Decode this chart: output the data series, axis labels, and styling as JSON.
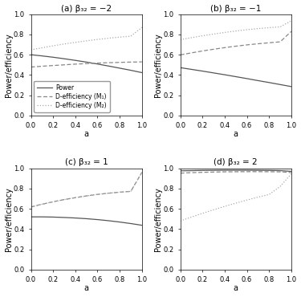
{
  "panels": [
    {
      "title": "(a) β₃₂ = −2",
      "power": [
        0.6,
        0.588,
        0.575,
        0.56,
        0.544,
        0.527,
        0.508,
        0.488,
        0.467,
        0.446,
        0.423
      ],
      "d_eff_M1": [
        0.478,
        0.486,
        0.493,
        0.5,
        0.507,
        0.512,
        0.517,
        0.521,
        0.524,
        0.527,
        0.529
      ],
      "d_eff_M2": [
        0.648,
        0.668,
        0.688,
        0.706,
        0.722,
        0.737,
        0.751,
        0.763,
        0.774,
        0.783,
        0.87
      ],
      "legend": true
    },
    {
      "title": "(b) β₃₂ = −1",
      "power": [
        0.472,
        0.455,
        0.438,
        0.42,
        0.402,
        0.383,
        0.364,
        0.344,
        0.325,
        0.305,
        0.285
      ],
      "d_eff_M1": [
        0.598,
        0.618,
        0.637,
        0.654,
        0.67,
        0.684,
        0.697,
        0.708,
        0.718,
        0.727,
        0.83
      ],
      "d_eff_M2": [
        0.748,
        0.768,
        0.787,
        0.804,
        0.82,
        0.834,
        0.847,
        0.858,
        0.867,
        0.875,
        0.935
      ],
      "legend": false
    },
    {
      "title": "(c) β₃₂ = 1",
      "power": [
        0.52,
        0.52,
        0.518,
        0.514,
        0.509,
        0.502,
        0.493,
        0.482,
        0.469,
        0.454,
        0.437
      ],
      "d_eff_M1": [
        0.618,
        0.645,
        0.669,
        0.691,
        0.71,
        0.727,
        0.742,
        0.754,
        0.764,
        0.772,
        0.96
      ],
      "d_eff_M2": [
        0.618,
        0.645,
        0.669,
        0.691,
        0.71,
        0.727,
        0.742,
        0.754,
        0.764,
        0.772,
        0.96
      ],
      "legend": false
    },
    {
      "title": "(d) β₃₂ = 2",
      "power": [
        0.975,
        0.977,
        0.979,
        0.98,
        0.981,
        0.981,
        0.981,
        0.98,
        0.979,
        0.977,
        0.97
      ],
      "d_eff_M1": [
        0.952,
        0.957,
        0.96,
        0.963,
        0.965,
        0.966,
        0.967,
        0.967,
        0.966,
        0.965,
        0.958
      ],
      "d_eff_M2": [
        0.48,
        0.518,
        0.555,
        0.59,
        0.624,
        0.656,
        0.686,
        0.715,
        0.741,
        0.82,
        0.945
      ],
      "legend": false
    }
  ],
  "a_values": [
    0.0,
    0.1,
    0.2,
    0.3,
    0.4,
    0.5,
    0.6,
    0.7,
    0.8,
    0.9,
    1.0
  ],
  "ylim": [
    0.0,
    1.0
  ],
  "yticks": [
    0.0,
    0.2,
    0.4,
    0.6,
    0.8,
    1.0
  ],
  "xticks": [
    0.0,
    0.2,
    0.4,
    0.6,
    0.8,
    1.0
  ],
  "xlabel": "a",
  "ylabel": "Power/efficiency",
  "power_color": "#555555",
  "d_eff_M1_color": "#888888",
  "d_eff_M2_color": "#aaaaaa",
  "legend_labels": [
    "Power",
    "D-efficiency (M₁)",
    "D-efficiency (M₂)"
  ],
  "background": "#ffffff",
  "title_fontsize": 7.5,
  "axis_fontsize": 7,
  "tick_fontsize": 6,
  "legend_fontsize": 5.5
}
